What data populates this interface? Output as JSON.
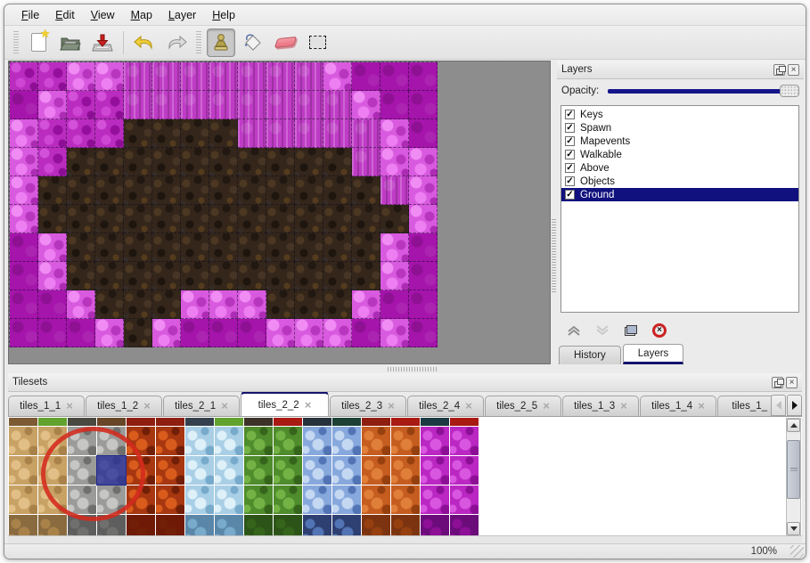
{
  "menu": {
    "items": [
      {
        "label": "File"
      },
      {
        "label": "Edit"
      },
      {
        "label": "View"
      },
      {
        "label": "Map"
      },
      {
        "label": "Layer"
      },
      {
        "label": "Help"
      }
    ]
  },
  "toolbar": {
    "buttons": [
      {
        "name": "new-file",
        "group": 1,
        "active": false
      },
      {
        "name": "open-file",
        "group": 1,
        "active": false
      },
      {
        "name": "save-file",
        "group": 1,
        "active": false
      },
      {
        "name": "undo",
        "group": 2,
        "active": false
      },
      {
        "name": "redo",
        "group": 2,
        "active": false
      },
      {
        "name": "stamp-tool",
        "group": 3,
        "active": true
      },
      {
        "name": "fill-tool",
        "group": 3,
        "active": false
      },
      {
        "name": "eraser-tool",
        "group": 3,
        "active": false
      },
      {
        "name": "select-tool",
        "group": 3,
        "active": false
      }
    ]
  },
  "map_view": {
    "tile_size": 32,
    "legend": {
      "b": "brown-dirt",
      "d": "magenta-dark",
      "m": "magenta-rock",
      "l": "magenta-light",
      "s": "magenta-striped"
    },
    "rows": [
      "mmllssssssslddd",
      "dlmmssssssssldd",
      "lmmmbbbbsssssld",
      "lmbbbbbbbbbbsll",
      "lbbbbbbbbbbbbsl",
      "lbbbbbbbbbbbbbl",
      "dlbbbbbbbbbbbld",
      "dlbbbbbbbbbbbld",
      "ddlbbblllbbbldd",
      "dddlbldddllldld"
    ]
  },
  "layers_panel": {
    "title": "Layers",
    "opacity_label": "Opacity:",
    "opacity_percent": 100,
    "layers": [
      {
        "name": "Keys",
        "checked": true,
        "selected": false
      },
      {
        "name": "Spawn",
        "checked": true,
        "selected": false
      },
      {
        "name": "Mapevents",
        "checked": true,
        "selected": false
      },
      {
        "name": "Walkable",
        "checked": true,
        "selected": false
      },
      {
        "name": "Above",
        "checked": true,
        "selected": false
      },
      {
        "name": "Objects",
        "checked": true,
        "selected": false
      },
      {
        "name": "Ground",
        "checked": true,
        "selected": true
      }
    ],
    "buttons": [
      {
        "name": "move-layer-up",
        "enabled": true
      },
      {
        "name": "move-layer-down",
        "enabled": false
      },
      {
        "name": "duplicate-layer",
        "enabled": true
      },
      {
        "name": "delete-layer",
        "enabled": true
      }
    ],
    "dock_tabs": [
      {
        "label": "History",
        "active": false
      },
      {
        "label": "Layers",
        "active": true
      }
    ]
  },
  "tilesets_panel": {
    "title": "Tilesets",
    "tabs": [
      {
        "label": "tiles_1_1",
        "active": false
      },
      {
        "label": "tiles_1_2",
        "active": false
      },
      {
        "label": "tiles_2_1",
        "active": false
      },
      {
        "label": "tiles_2_2",
        "active": true
      },
      {
        "label": "tiles_2_3",
        "active": false
      },
      {
        "label": "tiles_2_4",
        "active": false
      },
      {
        "label": "tiles_2_5",
        "active": false
      },
      {
        "label": "tiles_1_3",
        "active": false
      },
      {
        "label": "tiles_1_4",
        "active": false
      },
      {
        "label": "tiles_1_",
        "active": false
      }
    ],
    "grid": {
      "columns": 16,
      "full_rows": 3,
      "column_pairs": [
        {
          "name": "dirt-tan",
          "base": "#c8a265",
          "hi": "#e2bf86",
          "lo": "#a9824a",
          "edge": "#8a6b3f"
        },
        {
          "name": "stone-gray",
          "base": "#9b9b99",
          "hi": "#c6c6c4",
          "lo": "#6f6f6d",
          "edge": "#5e5e5e"
        },
        {
          "name": "lava-red",
          "base": "#a63710",
          "hi": "#d95c1c",
          "lo": "#711f06",
          "edge": "#6e1a06"
        },
        {
          "name": "ice-blue",
          "base": "#a9cfe6",
          "hi": "#def0f8",
          "lo": "#77aacb",
          "edge": "#5a86a8"
        },
        {
          "name": "vine-green",
          "base": "#4f8c2c",
          "hi": "#74b246",
          "lo": "#35641b",
          "edge": "#2c5418"
        },
        {
          "name": "crystal-blue",
          "base": "#87a8dc",
          "hi": "#c5d8f2",
          "lo": "#5274b4",
          "edge": "#2e3f72"
        },
        {
          "name": "clay-orange",
          "base": "#c65d20",
          "hi": "#e07f3a",
          "lo": "#96400f",
          "edge": "#7c3410"
        },
        {
          "name": "amethyst-magenta",
          "base": "#ba27c2",
          "hi": "#d957e0",
          "lo": "#8c0f96",
          "edge": "#6b0c7a"
        }
      ],
      "top_strip_colors": [
        "#7b5a34",
        "#62a22f",
        "#494941",
        "#684628",
        "#8e1e10",
        "#8e1e10",
        "#34404e",
        "#62a22f",
        "#3c3228",
        "#a81a12",
        "#25323c",
        "#1c4034",
        "#8e1e10",
        "#a81a12",
        "#1c3a42",
        "#a81a12"
      ],
      "selected_tile": {
        "col": 3,
        "row": 1
      }
    },
    "annotation": {
      "shape": "circle",
      "color": "#d42a1e"
    }
  },
  "status_bar": {
    "zoom_level": "100%"
  }
}
